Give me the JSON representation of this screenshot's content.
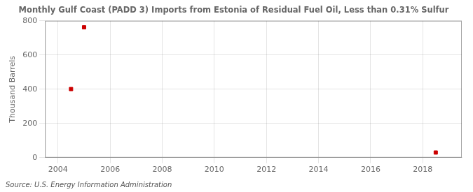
{
  "chart_data": {
    "type": "scatter",
    "title": "Monthly Gulf Coast (PADD 3) Imports from Estonia of Residual Fuel Oil, Less than 0.31% Sulfur",
    "ylabel": "Thousand Barrels",
    "annotations": [
      "Source: U.S. Energy Information Administration"
    ],
    "x": [
      2005.0,
      2004.5,
      2018.5
    ],
    "values": [
      762,
      401,
      30
    ],
    "color": "#cc0000",
    "marker": "square",
    "xlim": [
      2003.5,
      2019.5
    ],
    "ylim": [
      0,
      800
    ],
    "xticks": [
      2004,
      2006,
      2008,
      2010,
      2012,
      2014,
      2016,
      2018
    ],
    "yticks": [
      0,
      200,
      400,
      600,
      800
    ],
    "grid": true
  }
}
